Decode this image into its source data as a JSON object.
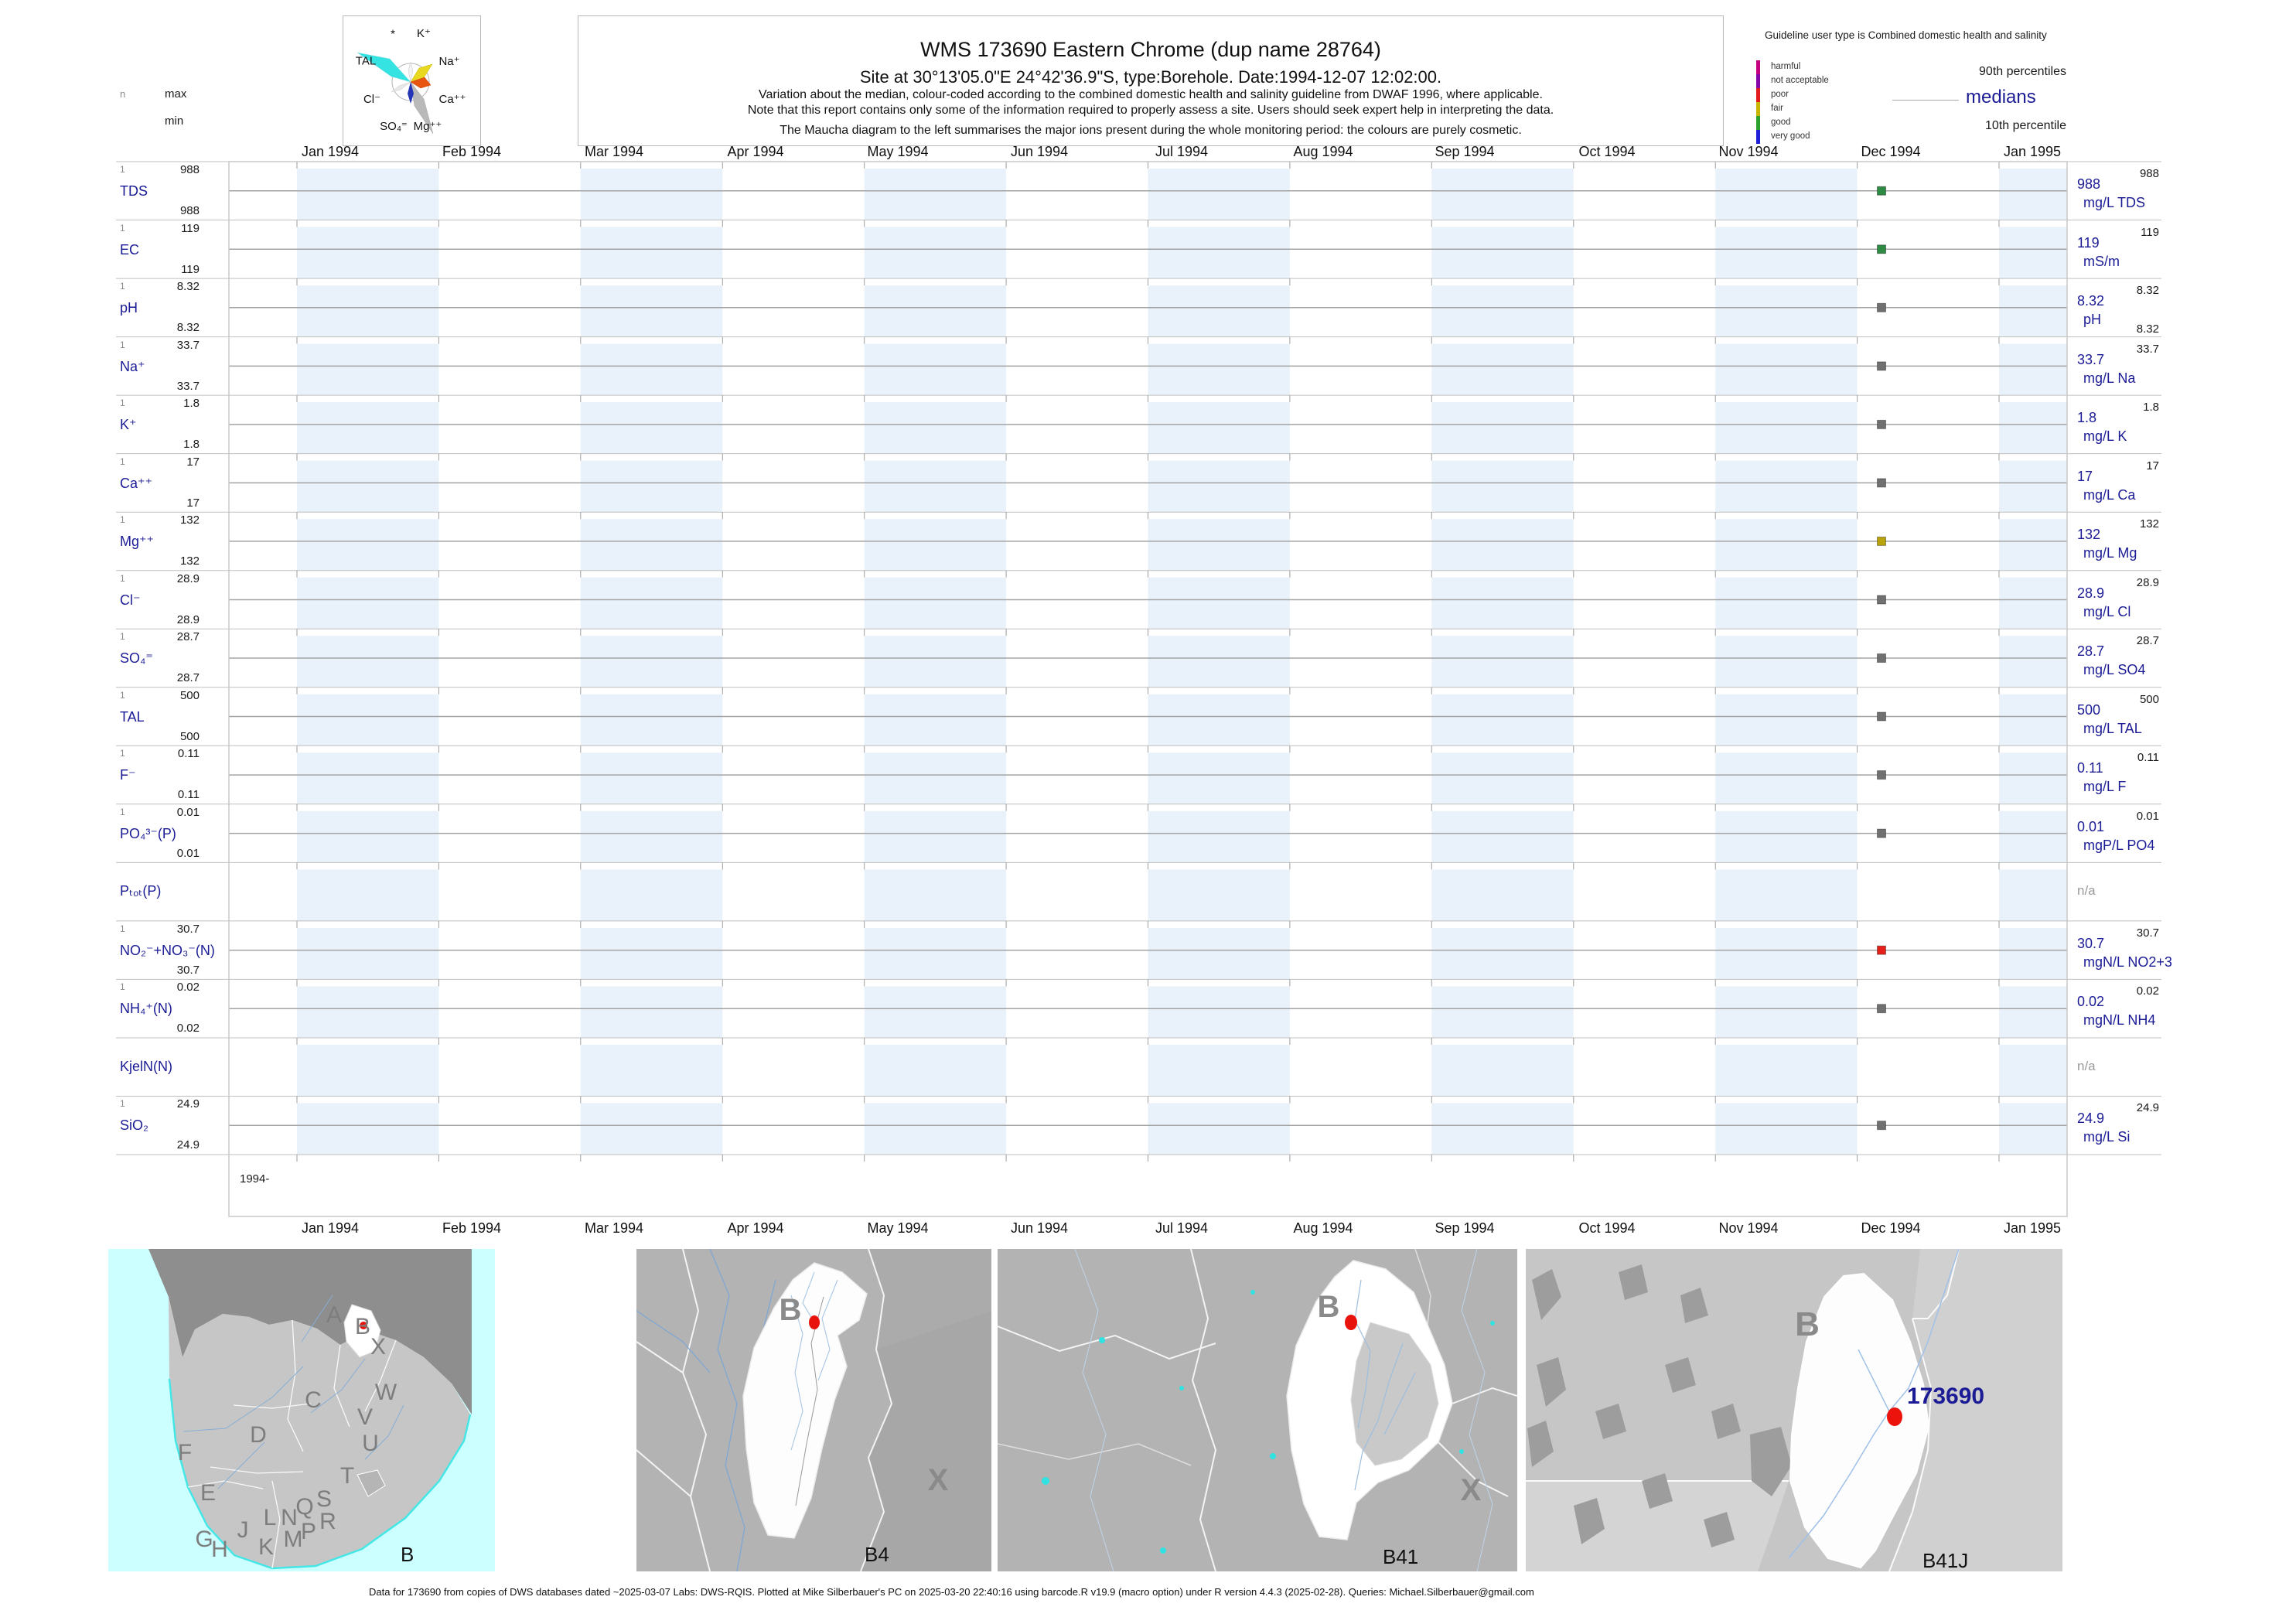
{
  "header": {
    "title": "WMS 173690  Eastern Chrome (dup name 28764)",
    "subtitle": "Site at 30°13'05.0\"E 24°42'36.9\"S, type:Borehole. Date:1994-12-07 12:02:00.",
    "note1": "Variation about the median,  colour-coded according to the combined domestic health and salinity guideline from DWAF 1996, where applicable.",
    "note2": "Note that this report contains only some of the information required to properly assess a site. Users should seek expert help in interpreting the data.",
    "note3": "The Maucha diagram to the left summarises the major ions present during the whole monitoring period: the colours are purely cosmetic."
  },
  "stats_header": {
    "n": "n",
    "max": "max",
    "min": "min"
  },
  "maucha": {
    "labels": [
      "*",
      "K⁺",
      "Na⁺",
      "TAL",
      "Cl⁻",
      "Ca⁺⁺",
      "SO₄⁼",
      "Mg⁺⁺"
    ]
  },
  "guideline": {
    "title": "Guideline user type is Combined domestic health and salinity",
    "classes": [
      {
        "label": "harmful",
        "color": "#c4007e"
      },
      {
        "label": "not acceptable",
        "color": "#8306a8"
      },
      {
        "label": "poor",
        "color": "#e31a1c"
      },
      {
        "label": "fair",
        "color": "#c9b400"
      },
      {
        "label": "good",
        "color": "#2ca02c"
      },
      {
        "label": "very good",
        "color": "#2020d8"
      }
    ],
    "p90_label": "90th percentiles",
    "median_label": "medians",
    "p10_label": "10th percentile"
  },
  "axis": {
    "months": [
      "Jan 1994",
      "Feb 1994",
      "Mar 1994",
      "Apr 1994",
      "May 1994",
      "Jun 1994",
      "Jul 1994",
      "Aug 1994",
      "Sep 1994",
      "Oct 1994",
      "Nov 1994",
      "Dec 1994",
      "Jan 1995"
    ],
    "year_label": "1994-"
  },
  "colors": {
    "band": "#e9f2fb",
    "median_line": "#a3a3a3",
    "status": {
      "good": "#2e8b44",
      "fair": "#b9a30a",
      "poor": "#e3211a",
      "none": "#707070"
    }
  },
  "rows": [
    {
      "name": "TDS",
      "n": "1",
      "max": "988",
      "min": "988",
      "p90": "988",
      "median": "988",
      "unit": "mg/L TDS",
      "status": "good"
    },
    {
      "name": "EC",
      "n": "1",
      "max": "119",
      "min": "119",
      "p90": "119",
      "median": "119",
      "unit": "mS/m",
      "status": "good"
    },
    {
      "name": "pH",
      "n": "1",
      "max": "8.32",
      "min": "8.32",
      "p90": "8.32",
      "median": "8.32",
      "p10": "8.32",
      "unit": "pH",
      "status": "none"
    },
    {
      "name": "Na⁺",
      "n": "1",
      "max": "33.7",
      "min": "33.7",
      "p90": "33.7",
      "median": "33.7",
      "unit": "mg/L Na",
      "status": "none"
    },
    {
      "name": "K⁺",
      "n": "1",
      "max": "1.8",
      "min": "1.8",
      "p90": "1.8",
      "median": "1.8",
      "unit": "mg/L K",
      "status": "none"
    },
    {
      "name": "Ca⁺⁺",
      "n": "1",
      "max": "17",
      "min": "17",
      "p90": "17",
      "median": "17",
      "unit": "mg/L Ca",
      "status": "none"
    },
    {
      "name": "Mg⁺⁺",
      "n": "1",
      "max": "132",
      "min": "132",
      "p90": "132",
      "median": "132",
      "unit": "mg/L Mg",
      "status": "fair"
    },
    {
      "name": "Cl⁻",
      "n": "1",
      "max": "28.9",
      "min": "28.9",
      "p90": "28.9",
      "median": "28.9",
      "unit": "mg/L Cl",
      "status": "none"
    },
    {
      "name": "SO₄⁼",
      "n": "1",
      "max": "28.7",
      "min": "28.7",
      "p90": "28.7",
      "median": "28.7",
      "unit": "mg/L SO4",
      "status": "none"
    },
    {
      "name": "TAL",
      "n": "1",
      "max": "500",
      "min": "500",
      "p90": "500",
      "median": "500",
      "unit": "mg/L TAL",
      "status": "none"
    },
    {
      "name": "F⁻",
      "n": "1",
      "max": "0.11",
      "min": "0.11",
      "p90": "0.11",
      "median": "0.11",
      "unit": "mg/L F",
      "status": "none"
    },
    {
      "name": "PO₄³⁻(P)",
      "n": "1",
      "max": "0.01",
      "min": "0.01",
      "p90": "0.01",
      "median": "0.01",
      "unit": "mgP/L PO4",
      "status": "none"
    },
    {
      "name": "Pₜₒₜ(P)",
      "na": "n/a"
    },
    {
      "name": "NO₂⁻+NO₃⁻(N)",
      "n": "1",
      "max": "30.7",
      "min": "30.7",
      "p90": "30.7",
      "median": "30.7",
      "unit": "mgN/L NO2+3",
      "status": "poor"
    },
    {
      "name": "NH₄⁺(N)",
      "n": "1",
      "max": "0.02",
      "min": "0.02",
      "p90": "0.02",
      "median": "0.02",
      "unit": "mgN/L NH4",
      "status": "none"
    },
    {
      "name": "KjelN(N)",
      "na": "n/a"
    },
    {
      "name": "SiO₂",
      "n": "1",
      "max": "24.9",
      "min": "24.9",
      "p90": "24.9",
      "median": "24.9",
      "unit": "mg/L Si",
      "status": "none"
    }
  ],
  "maps": [
    {
      "panel_label": "B",
      "letters": [
        "A",
        "B",
        "X",
        "W",
        "C",
        "V",
        "D",
        "U",
        "F",
        "T",
        "E",
        "S",
        "Q",
        "L",
        "N",
        "R",
        "J",
        "P",
        "M",
        "G",
        "K",
        "H"
      ]
    },
    {
      "panel_label": "B4",
      "letters": [
        "B",
        "X"
      ]
    },
    {
      "panel_label": "B41",
      "letters": [
        "B",
        "X"
      ]
    },
    {
      "panel_label": "B41J",
      "letters": [
        "B"
      ],
      "site_label": "173690"
    }
  ],
  "footer": "Data for 173690 from copies of DWS databases dated ~2025-03-07 Labs: DWS-RQIS. Plotted at Mike Silberbauer's PC on 2025-03-20 22:40:16 using barcode.R v19.9 (macro option) under R version 4.4.3 (2025-02-28). Queries: Michael.Silberbauer@gmail.com",
  "chart_data": {
    "type": "scatter",
    "title": "WMS 173690 Eastern Chrome (dup name 28764)",
    "x_axis": {
      "start": "1993-12-16",
      "end": "1995-01-15",
      "tick_labels": [
        "Jan 1994",
        "Feb 1994",
        "Mar 1994",
        "Apr 1994",
        "May 1994",
        "Jun 1994",
        "Jul 1994",
        "Aug 1994",
        "Sep 1994",
        "Oct 1994",
        "Nov 1994",
        "Dec 1994",
        "Jan 1995"
      ]
    },
    "sample_date": "1994-12-07",
    "legend": {
      "p90": "90th percentiles",
      "median": "medians",
      "p10": "10th percentile"
    },
    "series": [
      {
        "name": "TDS",
        "unit": "mg/L TDS",
        "n": 1,
        "min": 988,
        "max": 988,
        "median": 988,
        "p90": 988,
        "guideline_class": "good"
      },
      {
        "name": "EC",
        "unit": "mS/m",
        "n": 1,
        "min": 119,
        "max": 119,
        "median": 119,
        "p90": 119,
        "guideline_class": "good"
      },
      {
        "name": "pH",
        "unit": "pH",
        "n": 1,
        "min": 8.32,
        "max": 8.32,
        "median": 8.32,
        "p90": 8.32,
        "p10": 8.32,
        "guideline_class": "none"
      },
      {
        "name": "Na",
        "unit": "mg/L Na",
        "n": 1,
        "min": 33.7,
        "max": 33.7,
        "median": 33.7,
        "p90": 33.7,
        "guideline_class": "none"
      },
      {
        "name": "K",
        "unit": "mg/L K",
        "n": 1,
        "min": 1.8,
        "max": 1.8,
        "median": 1.8,
        "p90": 1.8,
        "guideline_class": "none"
      },
      {
        "name": "Ca",
        "unit": "mg/L Ca",
        "n": 1,
        "min": 17,
        "max": 17,
        "median": 17,
        "p90": 17,
        "guideline_class": "none"
      },
      {
        "name": "Mg",
        "unit": "mg/L Mg",
        "n": 1,
        "min": 132,
        "max": 132,
        "median": 132,
        "p90": 132,
        "guideline_class": "fair"
      },
      {
        "name": "Cl",
        "unit": "mg/L Cl",
        "n": 1,
        "min": 28.9,
        "max": 28.9,
        "median": 28.9,
        "p90": 28.9,
        "guideline_class": "none"
      },
      {
        "name": "SO4",
        "unit": "mg/L SO4",
        "n": 1,
        "min": 28.7,
        "max": 28.7,
        "median": 28.7,
        "p90": 28.7,
        "guideline_class": "none"
      },
      {
        "name": "TAL",
        "unit": "mg/L TAL",
        "n": 1,
        "min": 500,
        "max": 500,
        "median": 500,
        "p90": 500,
        "guideline_class": "none"
      },
      {
        "name": "F",
        "unit": "mg/L F",
        "n": 1,
        "min": 0.11,
        "max": 0.11,
        "median": 0.11,
        "p90": 0.11,
        "guideline_class": "none"
      },
      {
        "name": "PO4(P)",
        "unit": "mgP/L PO4",
        "n": 1,
        "min": 0.01,
        "max": 0.01,
        "median": 0.01,
        "p90": 0.01,
        "guideline_class": "none"
      },
      {
        "name": "Ptot(P)",
        "value": null
      },
      {
        "name": "NO2+NO3(N)",
        "unit": "mgN/L NO2+3",
        "n": 1,
        "min": 30.7,
        "max": 30.7,
        "median": 30.7,
        "p90": 30.7,
        "guideline_class": "poor"
      },
      {
        "name": "NH4(N)",
        "unit": "mgN/L NH4",
        "n": 1,
        "min": 0.02,
        "max": 0.02,
        "median": 0.02,
        "p90": 0.02,
        "guideline_class": "none"
      },
      {
        "name": "KjelN(N)",
        "value": null
      },
      {
        "name": "SiO2",
        "unit": "mg/L Si",
        "n": 1,
        "min": 24.9,
        "max": 24.9,
        "median": 24.9,
        "p90": 24.9,
        "guideline_class": "none"
      }
    ]
  }
}
